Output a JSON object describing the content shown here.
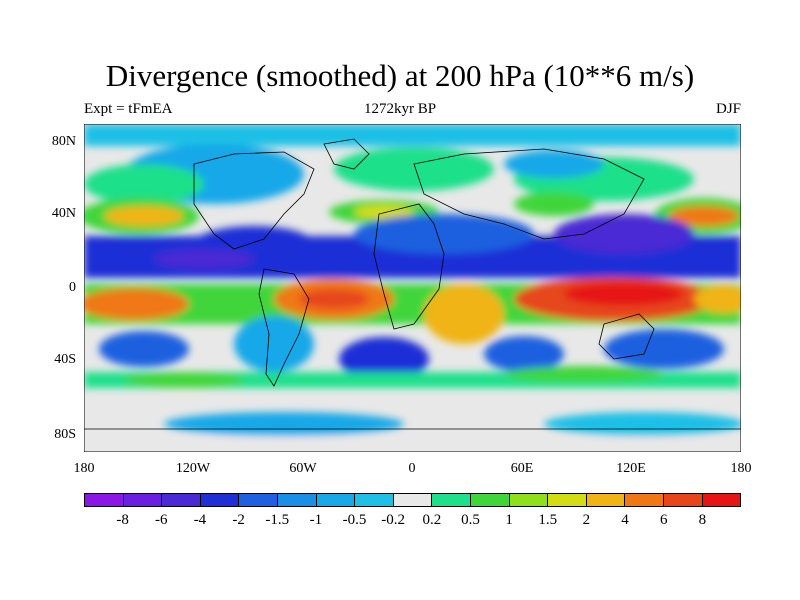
{
  "title": "Divergence (smoothed) at 200 hPa (10**6 m/s)",
  "subtitle_left": "Expt = tFmEA",
  "subtitle_center": "1272kyr BP",
  "subtitle_right": "DJF",
  "lat_labels": [
    "80N",
    "40N",
    "0",
    "40S",
    "80S"
  ],
  "lon_labels": [
    "180",
    "120W",
    "60W",
    "0",
    "60E",
    "120E",
    "180"
  ],
  "colorbar": {
    "labels": [
      "-8",
      "-6",
      "-4",
      "-2",
      "-1.5",
      "-1",
      "-0.5",
      "-0.2",
      "0.2",
      "0.5",
      "1",
      "1.5",
      "2",
      "4",
      "6",
      "8"
    ],
    "colors": [
      "#8a17e6",
      "#6b1fe0",
      "#4a2ad4",
      "#1f2fd6",
      "#1f60e0",
      "#1a8fe6",
      "#19a8e8",
      "#1fc0e6",
      "#e8e8e8",
      "#1fe08a",
      "#3fd63a",
      "#8fe01a",
      "#d4dc14",
      "#f0b414",
      "#f07814",
      "#e6461a",
      "#e61414"
    ]
  }
}
